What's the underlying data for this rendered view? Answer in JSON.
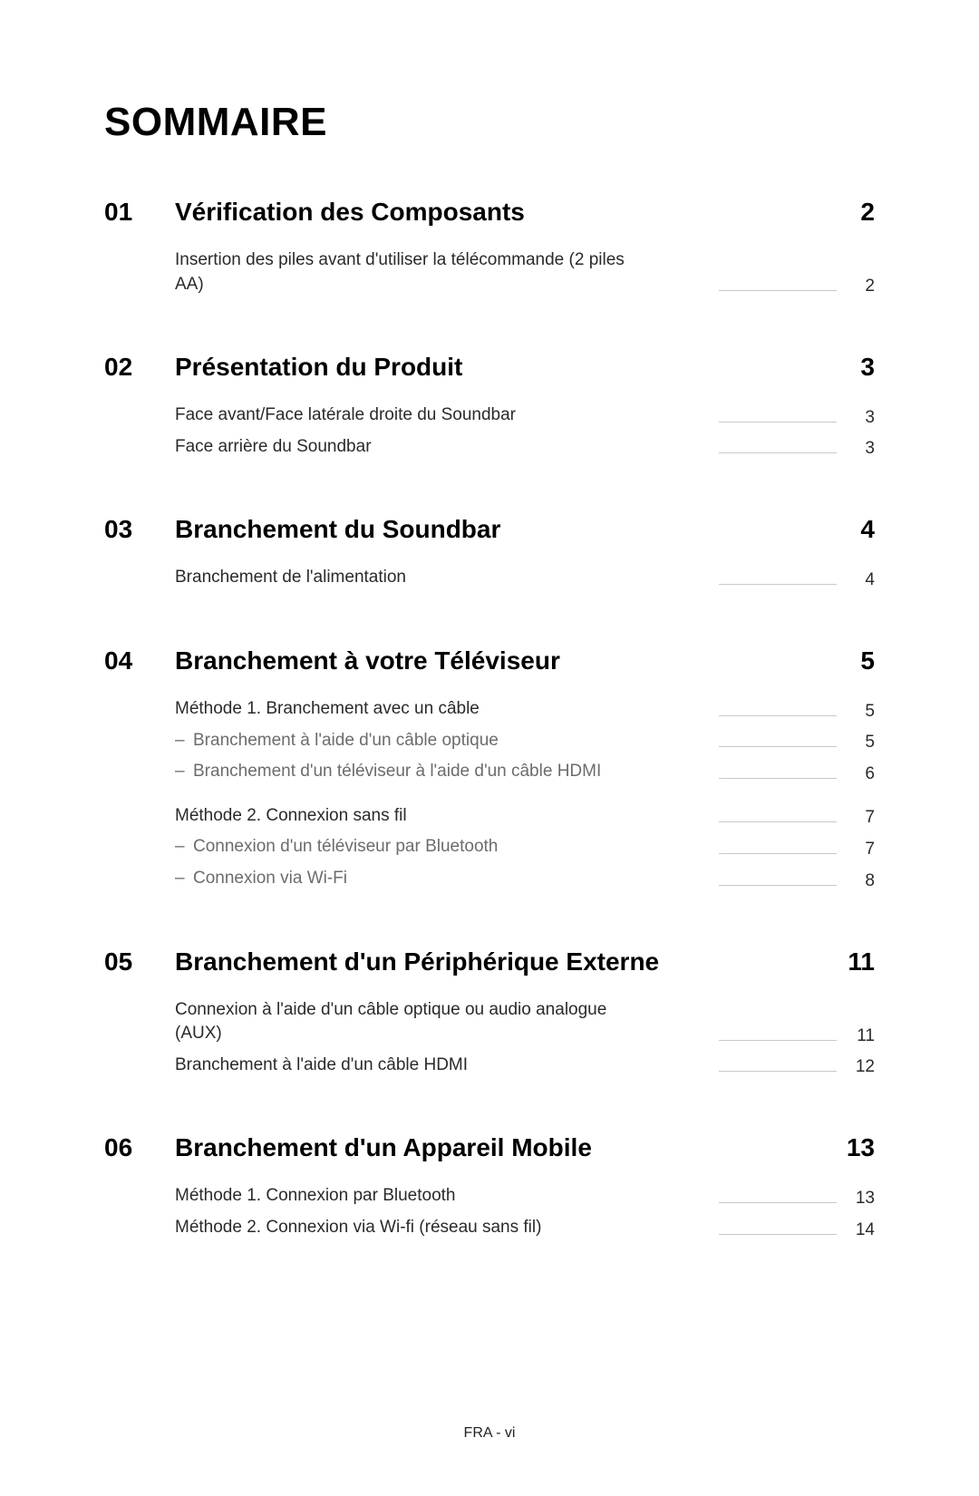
{
  "page": {
    "title": "SOMMAIRE",
    "footer": "FRA - vi"
  },
  "sections": [
    {
      "num": "01",
      "title": "Vérification des Composants",
      "page": "2",
      "items": [
        {
          "text": "Insertion des piles avant d'utiliser la télécommande (2 piles AA)",
          "page": "2"
        }
      ]
    },
    {
      "num": "02",
      "title": "Présentation du Produit",
      "page": "3",
      "items": [
        {
          "text": "Face avant/Face latérale droite du Soundbar",
          "page": "3"
        },
        {
          "text": "Face arrière du Soundbar",
          "page": "3"
        }
      ]
    },
    {
      "num": "03",
      "title": "Branchement du Soundbar",
      "page": "4",
      "items": [
        {
          "text": "Branchement de l'alimentation",
          "page": "4"
        }
      ]
    },
    {
      "num": "04",
      "title": "Branchement à votre Téléviseur",
      "page": "5",
      "items": [
        {
          "text": "Méthode 1. Branchement avec un câble",
          "page": "5"
        },
        {
          "text": "Branchement à l'aide d'un câble optique",
          "page": "5",
          "sub": true
        },
        {
          "text": "Branchement d'un téléviseur à l'aide d'un câble HDMI",
          "page": "6",
          "sub": true
        },
        {
          "gap": true
        },
        {
          "text": "Méthode 2. Connexion sans fil",
          "page": "7"
        },
        {
          "text": "Connexion d'un téléviseur par Bluetooth",
          "page": "7",
          "sub": true
        },
        {
          "text": "Connexion via Wi-Fi",
          "page": "8",
          "sub": true
        }
      ]
    },
    {
      "num": "05",
      "title": "Branchement d'un Périphérique Externe",
      "page": "11",
      "items": [
        {
          "text": "Connexion à l'aide d'un câble optique ou audio analogue (AUX)",
          "page": "11"
        },
        {
          "text": "Branchement à l'aide d'un câble HDMI",
          "page": "12"
        }
      ]
    },
    {
      "num": "06",
      "title": "Branchement d'un Appareil Mobile",
      "page": "13",
      "items": [
        {
          "text": "Méthode 1. Connexion par Bluetooth",
          "page": "13"
        },
        {
          "text": "Méthode 2. Connexion via Wi-fi (réseau sans fil)",
          "page": "14"
        }
      ]
    }
  ]
}
